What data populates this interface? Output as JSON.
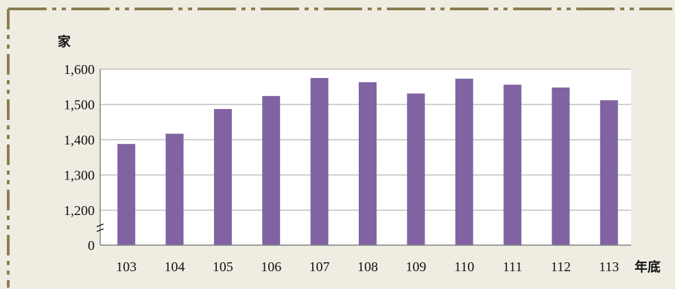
{
  "chart_data": {
    "type": "bar",
    "ylabel": "家",
    "xlabel": "年底",
    "categories": [
      "103",
      "104",
      "105",
      "106",
      "107",
      "108",
      "109",
      "110",
      "111",
      "112",
      "113"
    ],
    "values": [
      1388,
      1417,
      1487,
      1524,
      1575,
      1563,
      1531,
      1573,
      1556,
      1548,
      1512
    ],
    "ylim": [
      1200,
      1600
    ],
    "yticks": [
      "0",
      "1,200",
      "1,300",
      "1,400",
      "1,500",
      "1,600"
    ],
    "axis_break": true,
    "grid": true,
    "colors": {
      "bar": "#8064a2",
      "grid": "#bfbfbf",
      "frame": "#8b7d4d",
      "background": "#efece2"
    }
  }
}
